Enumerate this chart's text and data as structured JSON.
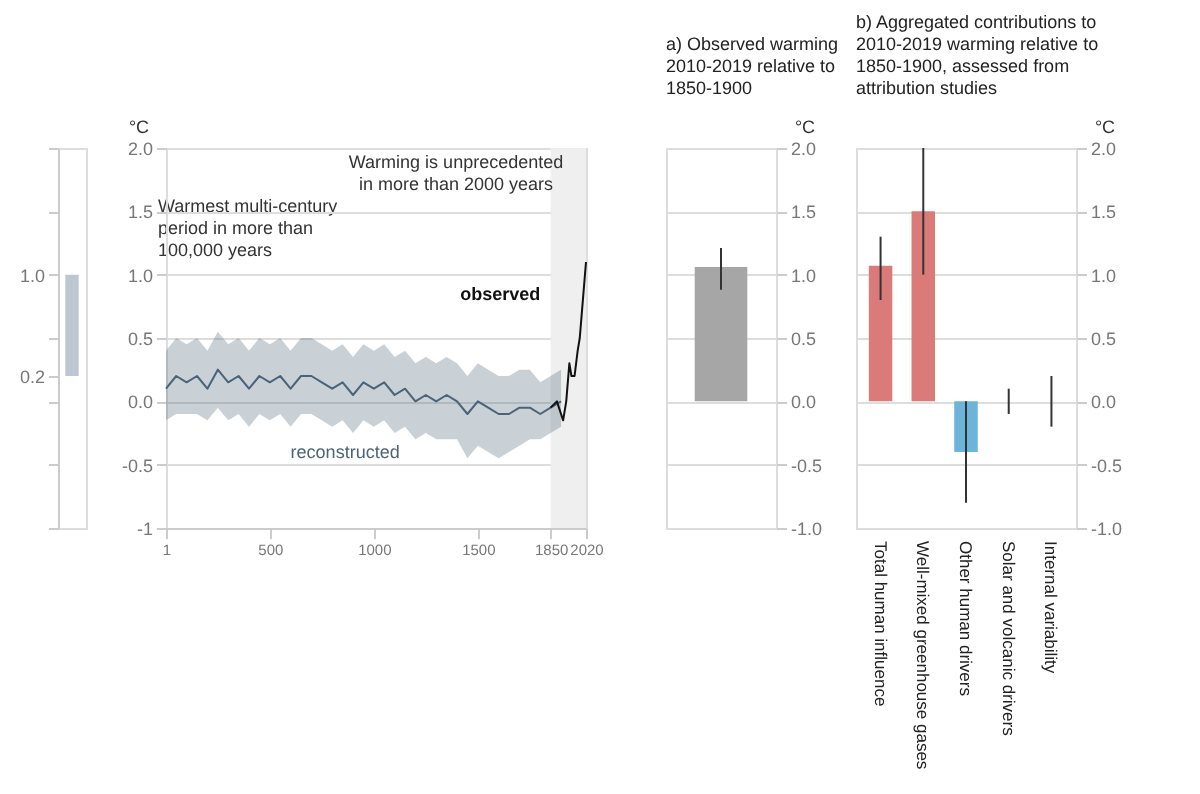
{
  "chart_data": [
    {
      "type": "bar",
      "categories": [
        null
      ],
      "values": [
        0.8
      ],
      "base": [
        0.2
      ],
      "color": "#bcc7d2",
      "ylim": [
        -1,
        2
      ],
      "yticks": [
        {
          "value": -1,
          "label": null
        },
        {
          "value": -0.5,
          "label": null
        },
        {
          "value": 0,
          "label": null
        },
        {
          "value": 0.2,
          "label": "0.2"
        },
        {
          "value": 0.5,
          "label": null
        },
        {
          "value": 1,
          "label": "1.0"
        },
        {
          "value": 1.5,
          "label": null
        },
        {
          "value": 2,
          "label": null
        }
      ],
      "tick_labels": "y",
      "annotations": [
        "Warmest multi-century period in more than 100,000 years"
      ]
    },
    {
      "type": "line",
      "ylabel": "°C",
      "xlim": [
        1,
        2020
      ],
      "xticks": [
        1,
        500,
        1000,
        1500,
        1850,
        2020
      ],
      "ylim": [
        -1,
        2
      ],
      "yticks": [
        {
          "value": -1,
          "label": "-1"
        },
        {
          "value": -0.5,
          "label": "-0.5"
        },
        {
          "value": 0,
          "label": "0.0"
        },
        {
          "value": 0.5,
          "label": "0.5"
        },
        {
          "value": 1,
          "label": "1.0"
        },
        {
          "value": 1.5,
          "label": "1.5"
        },
        {
          "value": 2,
          "label": "2.0"
        }
      ],
      "grid": "y",
      "bands": [
        {
          "axis": "x",
          "from": 1850,
          "to": 2020,
          "color": "#efefef"
        }
      ],
      "series": [
        {
          "name": "reconstructed",
          "color": "#4b6378",
          "x": [
            1,
            50,
            100,
            150,
            200,
            250,
            300,
            350,
            400,
            450,
            500,
            550,
            600,
            650,
            700,
            750,
            800,
            850,
            900,
            950,
            1000,
            1050,
            1100,
            1150,
            1200,
            1250,
            1300,
            1350,
            1400,
            1450,
            1500,
            1550,
            1600,
            1650,
            1700,
            1750,
            1800,
            1850,
            1900
          ],
          "values": [
            0.1,
            0.2,
            0.15,
            0.2,
            0.1,
            0.25,
            0.15,
            0.2,
            0.1,
            0.2,
            0.15,
            0.2,
            0.1,
            0.2,
            0.2,
            0.15,
            0.1,
            0.15,
            0.05,
            0.15,
            0.1,
            0.15,
            0.05,
            0.1,
            0.0,
            0.05,
            0.0,
            0.05,
            0.0,
            -0.1,
            0.0,
            -0.05,
            -0.1,
            -0.1,
            -0.05,
            -0.05,
            -0.1,
            -0.05,
            0.0
          ],
          "lower": [
            -0.15,
            -0.1,
            -0.1,
            -0.1,
            -0.15,
            -0.05,
            -0.15,
            -0.1,
            -0.2,
            -0.1,
            -0.15,
            -0.1,
            -0.2,
            -0.1,
            -0.1,
            -0.15,
            -0.2,
            -0.15,
            -0.25,
            -0.15,
            -0.2,
            -0.15,
            -0.25,
            -0.2,
            -0.3,
            -0.25,
            -0.3,
            -0.3,
            -0.3,
            -0.45,
            -0.35,
            -0.4,
            -0.45,
            -0.4,
            -0.35,
            -0.3,
            -0.3,
            -0.25,
            -0.2
          ],
          "upper": [
            0.4,
            0.5,
            0.45,
            0.5,
            0.4,
            0.55,
            0.45,
            0.5,
            0.4,
            0.5,
            0.45,
            0.5,
            0.4,
            0.5,
            0.5,
            0.45,
            0.4,
            0.45,
            0.35,
            0.45,
            0.4,
            0.45,
            0.35,
            0.4,
            0.3,
            0.35,
            0.3,
            0.35,
            0.3,
            0.2,
            0.3,
            0.25,
            0.2,
            0.2,
            0.25,
            0.25,
            0.15,
            0.2,
            0.25
          ]
        },
        {
          "name": "observed",
          "color": "#111111",
          "x": [
            1850,
            1880,
            1900,
            1910,
            1925,
            1940,
            1950,
            1965,
            1980,
            1990,
            2000,
            2010,
            2020
          ],
          "values": [
            -0.05,
            0.0,
            -0.1,
            -0.15,
            0.0,
            0.3,
            0.2,
            0.2,
            0.4,
            0.5,
            0.7,
            0.9,
            1.1
          ]
        }
      ],
      "annotations": [
        "Warming is unprecedented in more than 2000 years"
      ]
    },
    {
      "type": "bar",
      "title": "a) Observed warming 2010-2019 relative to 1850-1900",
      "ylabel": "°C",
      "categories": [
        null
      ],
      "values": [
        1.06
      ],
      "errors": [
        [
          0.88,
          1.21
        ]
      ],
      "color": "#a6a6a6",
      "ylim": [
        -1,
        2
      ],
      "yticks": [
        {
          "value": -1,
          "label": "-1.0"
        },
        {
          "value": -0.5,
          "label": "-0.5"
        },
        {
          "value": 0,
          "label": "0.0"
        },
        {
          "value": 0.5,
          "label": "0.5"
        },
        {
          "value": 1,
          "label": "1.0"
        },
        {
          "value": 1.5,
          "label": "1.5"
        },
        {
          "value": 2,
          "label": "2.0"
        }
      ],
      "grid": "y",
      "tick_labels": "y"
    },
    {
      "type": "bar",
      "title": "b) Aggregated contributions to 2010-2019 warming relative to 1850-1900, assessed from attribution studies",
      "ylabel": "°C",
      "categories": [
        "Total human influence",
        "Well-mixed greenhouse gases",
        "Other human drivers",
        "Solar and volcanic drivers",
        "Internal variability"
      ],
      "values": [
        1.07,
        1.5,
        -0.4,
        0,
        0
      ],
      "errors": [
        [
          0.8,
          1.3
        ],
        [
          1.0,
          2.0
        ],
        [
          -0.8,
          0.0
        ],
        [
          -0.1,
          0.1
        ],
        [
          -0.2,
          0.2
        ]
      ],
      "colors": [
        "#da7b79",
        "#da7b79",
        "#6cb4d8",
        "#da7b79",
        "#da7b79"
      ],
      "ylim": [
        -1,
        2
      ],
      "yticks": [
        {
          "value": -1,
          "label": "-1.0"
        },
        {
          "value": -0.5,
          "label": "-0.5"
        },
        {
          "value": 0,
          "label": "0.0"
        },
        {
          "value": 0.5,
          "label": "0.5"
        },
        {
          "value": 1,
          "label": "1.0"
        },
        {
          "value": 1.5,
          "label": "1.5"
        },
        {
          "value": 2,
          "label": "2.0"
        }
      ],
      "grid": "y"
    }
  ]
}
